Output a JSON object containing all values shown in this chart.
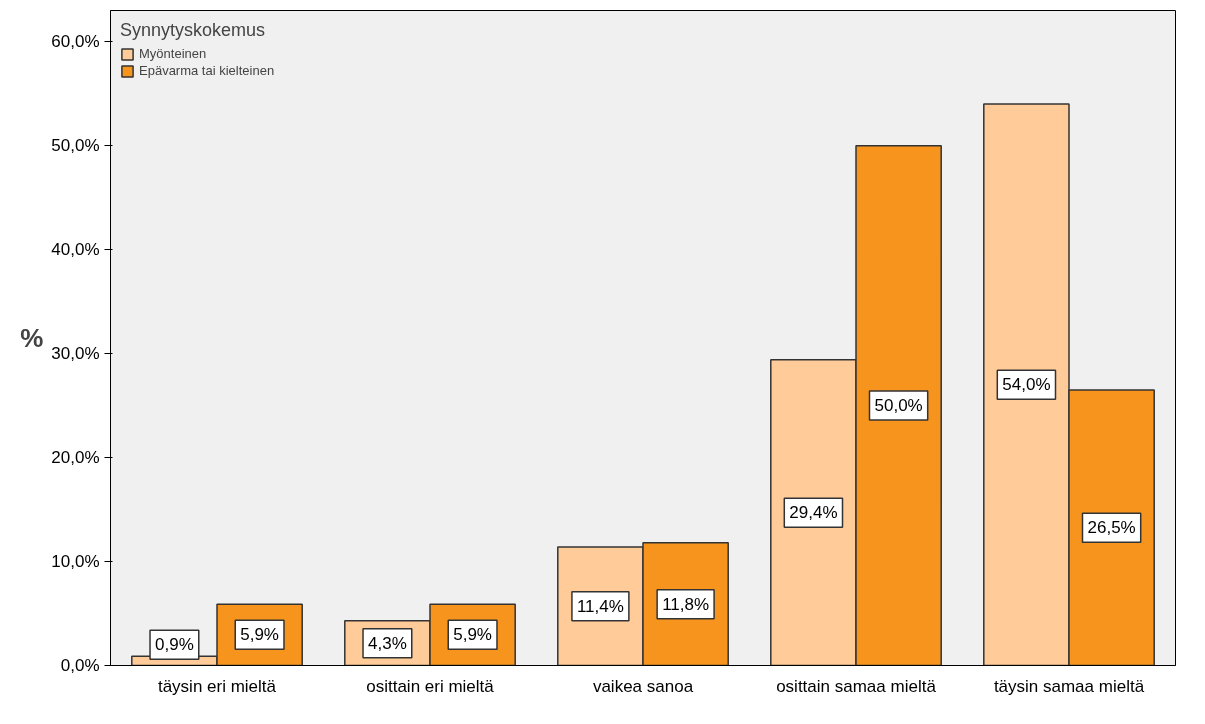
{
  "chart_data": {
    "type": "bar",
    "ylabel": "%",
    "legend_title": "Synnytyskokemus",
    "legend": "top left",
    "grid": false,
    "categories": [
      "täysin eri mieltä",
      "osittain eri mieltä",
      "vaikea sanoa",
      "osittain samaa mieltä",
      "täysin samaa mieltä"
    ],
    "series": [
      {
        "name": "Myönteinen",
        "color": "#ffcc99",
        "values": [
          0.9,
          4.3,
          11.4,
          29.4,
          54.0
        ],
        "value_labels": [
          "0,9%",
          "4,3%",
          "11,4%",
          "29,4%",
          "54,0%"
        ]
      },
      {
        "name": "Epävarma tai kielteinen",
        "color": "#f7941d",
        "values": [
          5.9,
          5.9,
          11.8,
          50.0,
          26.5
        ],
        "value_labels": [
          "5,9%",
          "5,9%",
          "11,8%",
          "50,0%",
          "26,5%"
        ]
      }
    ],
    "ylim": [
      0,
      63
    ],
    "yticks": [
      {
        "value": 0,
        "label": "0,0%"
      },
      {
        "value": 10,
        "label": "10,0%"
      },
      {
        "value": 20,
        "label": "20,0%"
      },
      {
        "value": 30,
        "label": "30,0%"
      },
      {
        "value": 40,
        "label": "40,0%"
      },
      {
        "value": 50,
        "label": "50,0%"
      },
      {
        "value": 60,
        "label": "60,0%"
      }
    ]
  }
}
